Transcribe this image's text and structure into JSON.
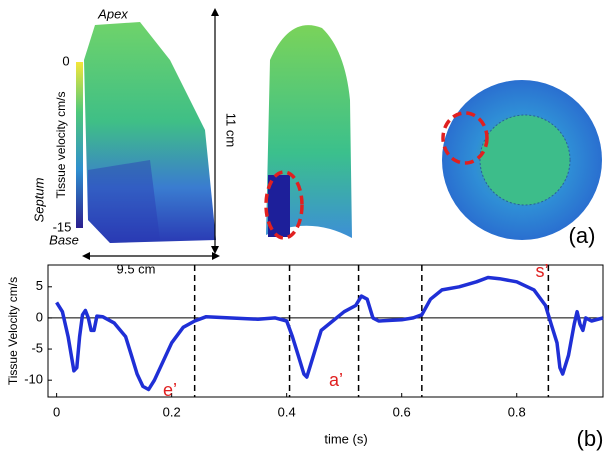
{
  "panel_a": {
    "apex": "Apex",
    "septum": "Septum",
    "base": "Base",
    "height": "11 cm",
    "width": "9.5 cm",
    "label": "(a)",
    "colorbar": {
      "label": "Tissue velocity cm/s",
      "ticks": [
        0,
        -15
      ]
    }
  },
  "chart_data": {
    "type": "line",
    "panel_label": "(b)",
    "xlabel": "time (s)",
    "ylabel": "Tissue Velocity cm/s",
    "x": [
      0,
      0.01,
      0.02,
      0.03,
      0.035,
      0.04,
      0.045,
      0.05,
      0.055,
      0.06,
      0.065,
      0.07,
      0.08,
      0.1,
      0.12,
      0.13,
      0.14,
      0.15,
      0.16,
      0.17,
      0.18,
      0.2,
      0.22,
      0.24,
      0.26,
      0.3,
      0.35,
      0.38,
      0.4,
      0.41,
      0.42,
      0.43,
      0.435,
      0.44,
      0.45,
      0.46,
      0.48,
      0.5,
      0.52,
      0.53,
      0.54,
      0.55,
      0.56,
      0.6,
      0.62,
      0.635,
      0.65,
      0.67,
      0.7,
      0.73,
      0.75,
      0.77,
      0.8,
      0.83,
      0.85,
      0.86,
      0.87,
      0.875,
      0.88,
      0.89,
      0.9,
      0.905,
      0.91,
      0.915,
      0.92,
      0.93,
      0.95
    ],
    "series": [
      {
        "color": "#1f2fd6",
        "values": [
          2.5,
          1,
          -3,
          -8.5,
          -8,
          -3,
          0.5,
          1.2,
          0,
          -2,
          -2,
          0.3,
          0.2,
          -0.8,
          -3,
          -6,
          -9,
          -11,
          -11.5,
          -10,
          -8,
          -4,
          -1.5,
          -0.5,
          0.2,
          0,
          -0.2,
          0,
          -0.5,
          -3,
          -6,
          -9,
          -9.5,
          -8,
          -5,
          -2,
          -0.5,
          1,
          2,
          3.5,
          3,
          0,
          -0.5,
          -0.3,
          0,
          0.5,
          3,
          4.5,
          5,
          5.8,
          6.5,
          6.3,
          5.8,
          4.5,
          2,
          -1,
          -4,
          -8,
          -9,
          -6,
          -1,
          1,
          -1,
          -2,
          0,
          -0.5,
          0
        ]
      }
    ],
    "xlim": [
      -0.015,
      0.95
    ],
    "xticks": [
      0,
      0.2,
      0.4,
      0.6,
      0.8
    ],
    "ylim": [
      -12.7,
      8.5
    ],
    "yticks": [
      5,
      0,
      -5,
      -10
    ],
    "vlines": [
      0.24,
      0.405,
      0.525,
      0.635,
      0.855
    ],
    "annotations": [
      "e’",
      "a’",
      "s’"
    ]
  }
}
